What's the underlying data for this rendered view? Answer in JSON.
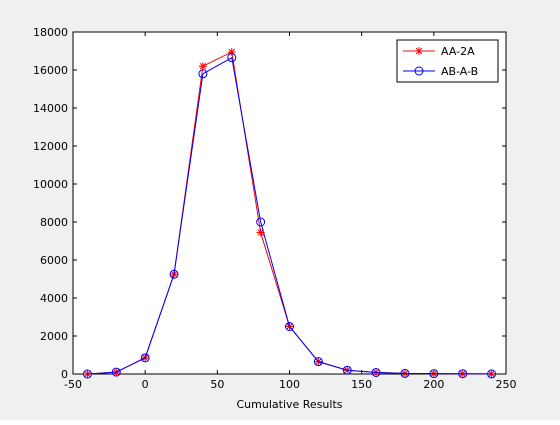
{
  "chart_data": {
    "type": "line",
    "title": "",
    "xlabel": "Cumulative Results",
    "ylabel": "",
    "xlim": [
      -50,
      250
    ],
    "ylim": [
      0,
      18000
    ],
    "xticks": [
      -50,
      0,
      50,
      100,
      150,
      200,
      250
    ],
    "yticks": [
      0,
      2000,
      4000,
      6000,
      8000,
      10000,
      12000,
      14000,
      16000,
      18000
    ],
    "grid": false,
    "legend_position": "top-right",
    "x": [
      -40,
      -20,
      0,
      20,
      40,
      60,
      80,
      100,
      120,
      140,
      160,
      180,
      200,
      220,
      240
    ],
    "series": [
      {
        "name": "AA-2A",
        "color": "#ff0000",
        "marker": "star",
        "values": [
          0,
          100,
          850,
          5250,
          16200,
          16950,
          7450,
          2500,
          650,
          200,
          80,
          30,
          20,
          15,
          5
        ]
      },
      {
        "name": "AB-A-B",
        "color": "#0000ff",
        "marker": "circle",
        "values": [
          0,
          100,
          850,
          5250,
          15800,
          16650,
          8000,
          2500,
          650,
          200,
          80,
          30,
          20,
          15,
          5
        ]
      }
    ]
  }
}
